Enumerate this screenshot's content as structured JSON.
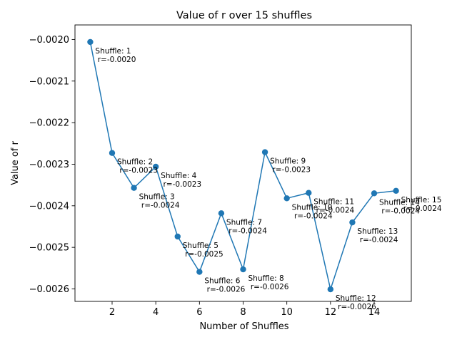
{
  "chart_data": {
    "type": "line",
    "title": "Value of r over 15 shuffles",
    "xlabel": "Number of Shuffles",
    "ylabel": "Value of r",
    "xlim": [
      0.3,
      15.7
    ],
    "ylim": [
      -0.00263,
      -0.001965
    ],
    "xticks": [
      2,
      4,
      6,
      8,
      10,
      12,
      14
    ],
    "yticks": [
      -0.002,
      -0.0021,
      -0.0022,
      -0.0023,
      -0.0024,
      -0.0025,
      -0.0026
    ],
    "ytick_labels": [
      "−0.0020",
      "−0.0021",
      "−0.0022",
      "−0.0023",
      "−0.0024",
      "−0.0025",
      "−0.0026"
    ],
    "grid": false,
    "color": "#1f77b4",
    "x": [
      1,
      2,
      3,
      4,
      5,
      6,
      7,
      8,
      9,
      10,
      11,
      12,
      13,
      14,
      15
    ],
    "values": [
      -0.002006,
      -0.002273,
      -0.002357,
      -0.002306,
      -0.002474,
      -0.002559,
      -0.002418,
      -0.002553,
      -0.002271,
      -0.002382,
      -0.002369,
      -0.002601,
      -0.00244,
      -0.00237,
      -0.002364
    ],
    "annotations": [
      [
        "Shuffle: 1",
        " r=-0.0020"
      ],
      [
        "Shuffle: 2",
        " r=-0.0023"
      ],
      [
        "Shuffle: 3",
        " r=-0.0024"
      ],
      [
        "Shuffle: 4",
        " r=-0.0023"
      ],
      [
        "Shuffle: 5",
        " r=-0.0025"
      ],
      [
        "Shuffle: 6",
        " r=-0.0026"
      ],
      [
        "Shuffle: 7",
        " r=-0.0024"
      ],
      [
        "Shuffle: 8",
        " r=-0.0026"
      ],
      [
        "Shuffle: 9",
        " r=-0.0023"
      ],
      [
        "Shuffle: 10",
        " r=-0.0024"
      ],
      [
        "Shuffle: 11",
        " r=-0.0024"
      ],
      [
        "Shuffle: 12",
        " r=-0.0026"
      ],
      [
        "Shuffle: 13",
        " r=-0.0024"
      ],
      [
        "Shuffle: 14",
        " r=-0.0024"
      ],
      [
        "Shuffle: 15",
        " r=-0.0024"
      ]
    ]
  }
}
